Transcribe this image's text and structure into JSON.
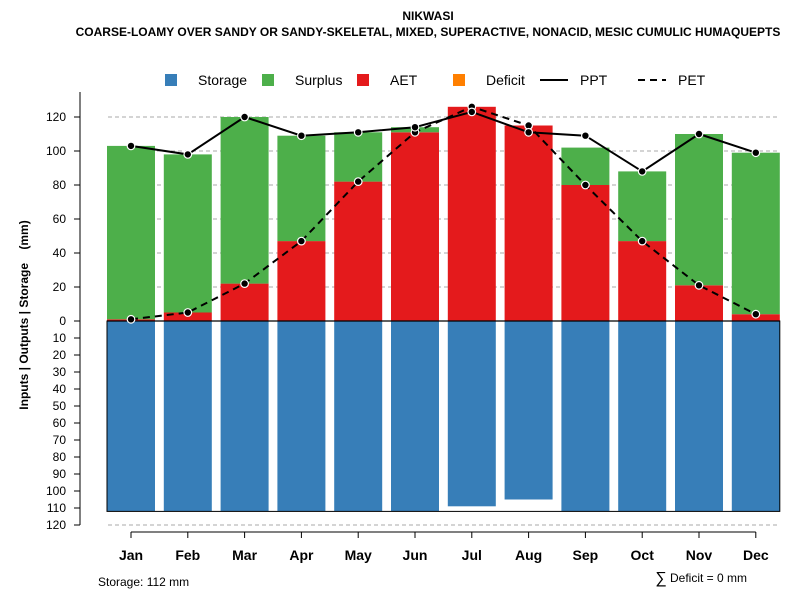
{
  "chart_data": {
    "type": "bar",
    "title": "NIKWASI",
    "subtitle": "COARSE-LOAMY OVER SANDY OR SANDY-SKELETAL, MIXED, SUPERACTIVE, NONACID, MESIC CUMULIC HUMAQUEPTS",
    "ylabel": "Inputs | Outputs | Storage    (mm)",
    "xlabel": "",
    "ylim": [
      -120,
      130
    ],
    "upper_ticks": [
      0,
      20,
      40,
      60,
      80,
      100,
      120
    ],
    "lower_ticks": [
      10,
      20,
      30,
      40,
      50,
      60,
      70,
      80,
      90,
      100,
      110,
      120
    ],
    "categories": [
      "Jan",
      "Feb",
      "Mar",
      "Apr",
      "May",
      "Jun",
      "Jul",
      "Aug",
      "Sep",
      "Oct",
      "Nov",
      "Dec"
    ],
    "series": [
      {
        "name": "Storage",
        "color": "#377EB8",
        "values": [
          112,
          112,
          112,
          112,
          112,
          112,
          109,
          105,
          112,
          112,
          112,
          112
        ]
      },
      {
        "name": "Surplus",
        "color": "#4DAF4A",
        "values": [
          102,
          93,
          98,
          62,
          29,
          3,
          0,
          0,
          22,
          41,
          89,
          95
        ]
      },
      {
        "name": "AET",
        "color": "#E41A1C",
        "values": [
          1,
          5,
          22,
          47,
          82,
          111,
          126,
          115,
          80,
          47,
          21,
          4
        ]
      },
      {
        "name": "Deficit",
        "color": "#FF7F00",
        "values": [
          0,
          0,
          0,
          0,
          0,
          0,
          0,
          0,
          0,
          0,
          0,
          0
        ]
      },
      {
        "name": "PPT",
        "color": "#000000",
        "line": "solid",
        "values": [
          103,
          98,
          120,
          109,
          111,
          114,
          123,
          111,
          109,
          88,
          110,
          99
        ]
      },
      {
        "name": "PET",
        "color": "#000000",
        "line": "dashed",
        "values": [
          1,
          5,
          22,
          47,
          82,
          111,
          126,
          115,
          80,
          47,
          21,
          4
        ]
      }
    ],
    "storage_capacity": 112,
    "legend_position": "top"
  },
  "footer": {
    "storage": "Storage: 112 mm",
    "deficit_symbol": "∑",
    "deficit": "Deficit = 0 mm"
  }
}
